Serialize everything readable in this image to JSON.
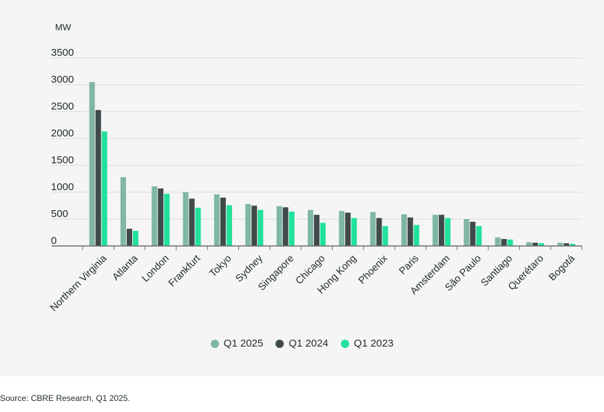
{
  "chart_data": {
    "type": "bar",
    "unit_label": "MW",
    "categories": [
      "Northern Virginia",
      "Atlanta",
      "London",
      "Frankfurt",
      "Tokyo",
      "Sydney",
      "Singapore",
      "Chicago",
      "Hong Kong",
      "Phoenix",
      "Paris",
      "Amsterdam",
      "São Paulo",
      "Santiago",
      "Querétaro",
      "Bogotá"
    ],
    "series": [
      {
        "name": "Q1 2025",
        "color": "#7fb7a4",
        "values": [
          3050,
          1280,
          1110,
          1000,
          960,
          780,
          740,
          670,
          650,
          630,
          590,
          580,
          500,
          160,
          70,
          60
        ]
      },
      {
        "name": "Q1 2024",
        "color": "#3f4a4a",
        "values": [
          2530,
          320,
          1070,
          880,
          900,
          750,
          720,
          580,
          620,
          520,
          530,
          580,
          450,
          130,
          60,
          50
        ]
      },
      {
        "name": "Q1 2023",
        "color": "#21e19b",
        "values": [
          2130,
          280,
          970,
          710,
          760,
          670,
          640,
          430,
          520,
          370,
          390,
          520,
          370,
          120,
          50,
          40
        ]
      }
    ],
    "ylim": [
      0,
      3500
    ],
    "yticks": [
      0,
      500,
      1000,
      1500,
      2000,
      2500,
      3000,
      3500
    ],
    "grid": true,
    "legend_position": "bottom-center"
  },
  "source_text": "Source: CBRE Research, Q1 2025."
}
